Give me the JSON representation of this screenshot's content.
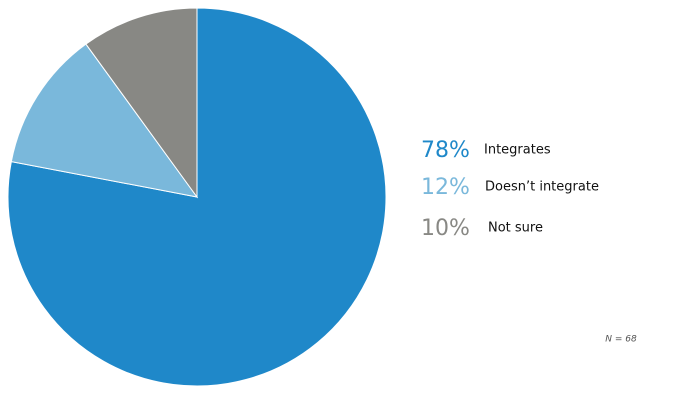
{
  "chart_data": {
    "type": "pie",
    "categories": [
      "Integrates",
      "Doesn’t integrate",
      "Not sure"
    ],
    "values": [
      78,
      12,
      10
    ],
    "value_labels": [
      "78%",
      "12%",
      "10%"
    ],
    "colors": [
      "#1f88c9",
      "#7ab8db",
      "#888884"
    ],
    "note": "N = 68"
  }
}
